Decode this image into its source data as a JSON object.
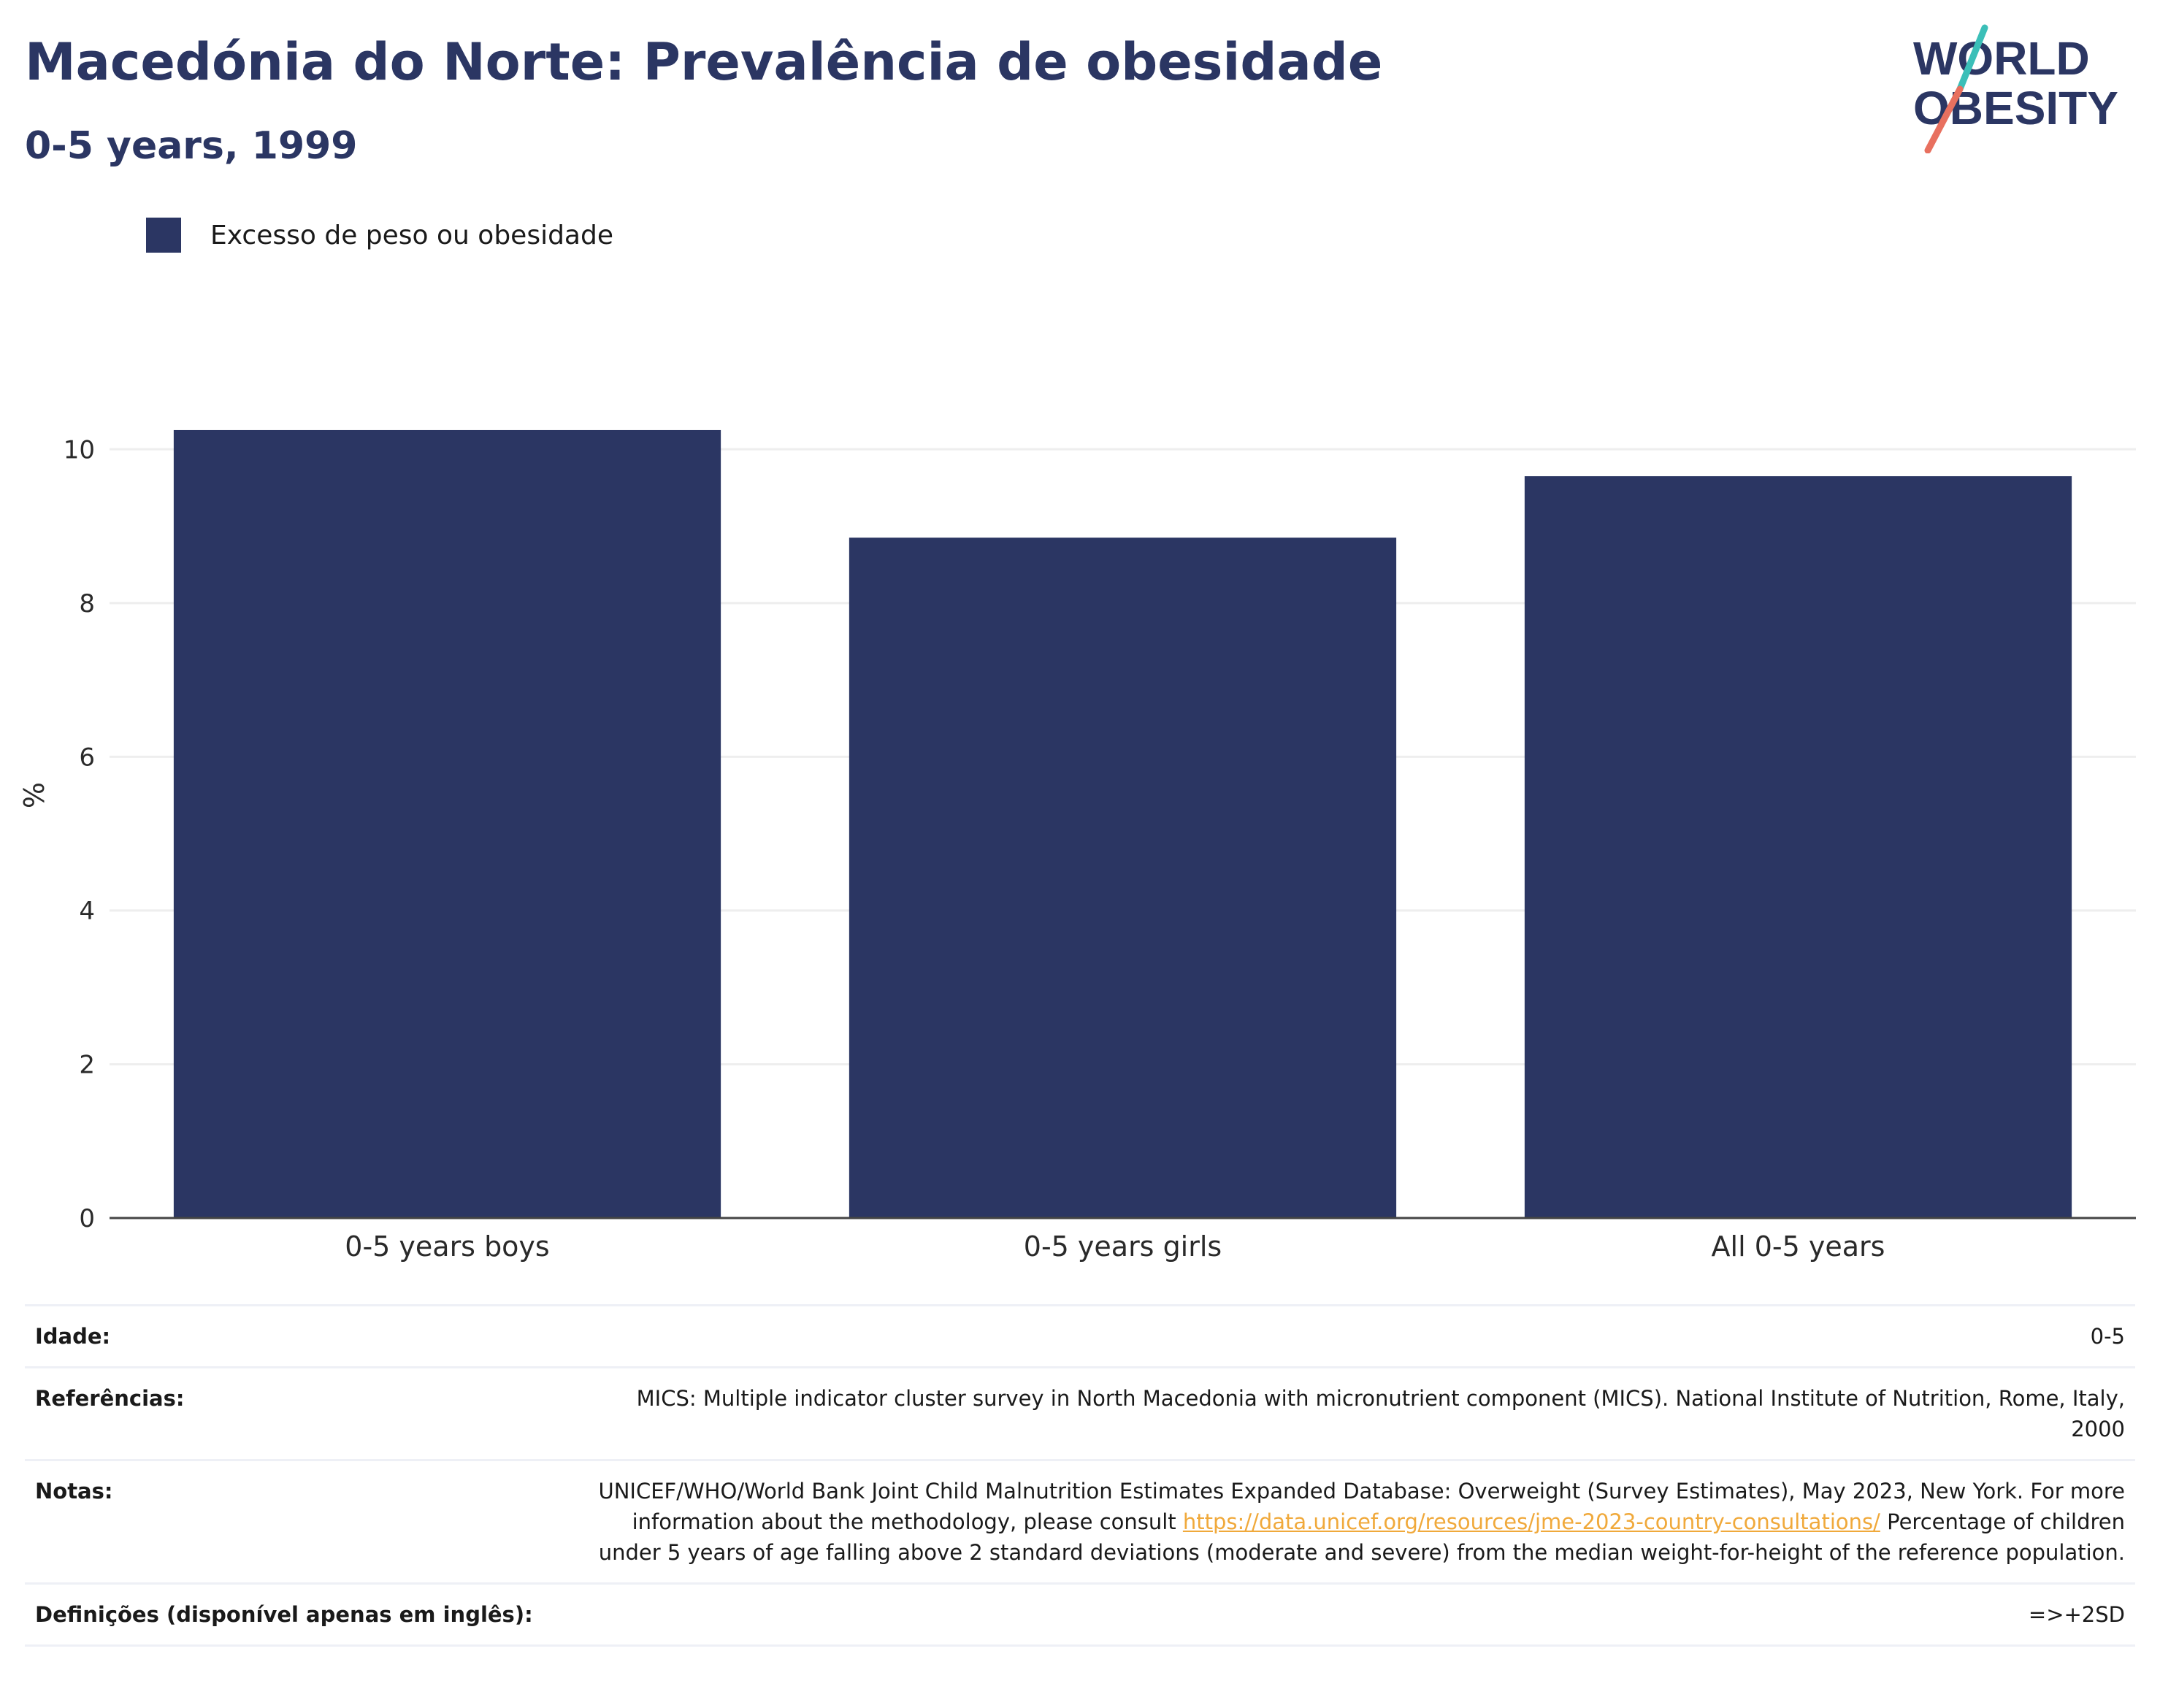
{
  "header": {
    "title": "Macedónia do Norte: Prevalência de obesidade",
    "subtitle": "0-5 years, 1999"
  },
  "logo": {
    "line1": "WORLD",
    "line2": "OBESITY"
  },
  "legend": {
    "label": "Excesso de peso ou obesidade",
    "color": "#2b3663"
  },
  "chart_data": {
    "type": "bar",
    "categories": [
      "0-5 years boys",
      "0-5 years girls",
      "All 0-5 years"
    ],
    "series": [
      {
        "name": "Excesso de peso ou obesidade",
        "values": [
          10.25,
          8.85,
          9.65
        ]
      }
    ],
    "title": "",
    "xlabel": "",
    "ylabel": "%",
    "ylim": [
      0,
      11
    ],
    "yticks": [
      0,
      2,
      4,
      6,
      8,
      10
    ],
    "grid": true,
    "legend": "top-left",
    "bar_color": "#2b3663"
  },
  "info": {
    "age_label": "Idade:",
    "age_value": "0-5",
    "refs_label": "Referências:",
    "refs_value": "MICS: Multiple indicator cluster survey in North Macedonia with micronutrient component (MICS). National Institute of Nutrition, Rome, Italy, 2000",
    "notes_label": "Notas:",
    "notes_text1": "UNICEF/WHO/World Bank Joint Child Malnutrition Estimates Expanded Database: Overweight (Survey Estimates), May 2023, New York. For more information about the methodology, please consult",
    "notes_link": "https://data.unicef.org/resources/jme-2023-country-consultations/",
    "notes_text2": "Percentage of children under 5 years of age falling above 2 standard deviations (moderate and severe) from the median weight-for-height of the reference population.",
    "defs_label": "Definições (disponível apenas em inglês):",
    "defs_value": "=>+2SD"
  }
}
